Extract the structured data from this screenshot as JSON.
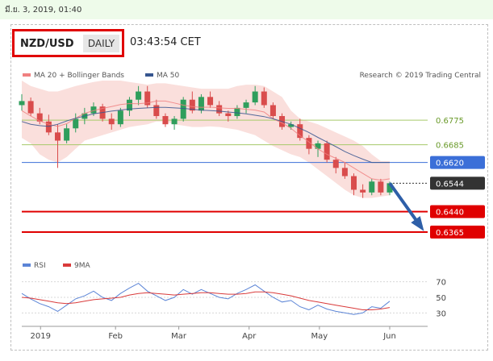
{
  "header": {
    "datetime": "มี.ย. 3, 2019, 01:40",
    "symbol": "NZD/USD",
    "timeframe": "DAILY",
    "clock": "03:43:54 CET"
  },
  "legend": {
    "bollinger": "MA 20 + Bollinger Bands",
    "ma50": "MA 50",
    "credit": "Research © 2019 Trading Central",
    "rsi": "RSI",
    "rsi_ma": "9MA"
  },
  "colors": {
    "up": "#2f9e5c",
    "down": "#d94c4c",
    "band": "#f7c9c4",
    "ma50": "#36558f",
    "green_level": "#a6c96a",
    "blue_level": "#3b6fd8",
    "red_level": "#e00000",
    "arrow": "#2e5fa8",
    "current": "#333333"
  },
  "chart_data": [
    {
      "type": "candlestick",
      "title": "",
      "xlabel": "",
      "ylabel": "",
      "ylim": [
        0.63,
        0.692
      ],
      "x_ticks": [
        "2019",
        "Feb",
        "Mar",
        "Apr",
        "May",
        "Jun"
      ],
      "x_tick_days": [
        8,
        40,
        67,
        97,
        127,
        157
      ],
      "bollinger_opacity": 0.6,
      "series": [
        {
          "name": "MA 20 + Bollinger Bands",
          "color": "#f08080",
          "values": [
            0.681,
            0.679,
            0.6772,
            0.676,
            0.6752,
            0.6762,
            0.6782,
            0.68,
            0.681,
            0.6818,
            0.6825,
            0.6832,
            0.6836,
            0.6835,
            0.6838,
            0.6845,
            0.6845,
            0.6838,
            0.683,
            0.6825,
            0.6822,
            0.6823,
            0.682,
            0.6818,
            0.6818,
            0.6815,
            0.6812,
            0.6805,
            0.678,
            0.6765,
            0.6745,
            0.6718,
            0.6695,
            0.667,
            0.665,
            0.6635,
            0.662,
            0.66,
            0.658,
            0.656,
            0.6555,
            0.656
          ]
        },
        {
          "name": "MA 50",
          "color": "#36558f",
          "values": [
            0.677,
            0.676,
            0.6755,
            0.6752,
            0.676,
            0.6772,
            0.6782,
            0.679,
            0.6798,
            0.6803,
            0.6808,
            0.6812,
            0.6816,
            0.6818,
            0.682,
            0.6822,
            0.6822,
            0.682,
            0.6818,
            0.6815,
            0.6812,
            0.681,
            0.6808,
            0.6805,
            0.6802,
            0.6798,
            0.6793,
            0.6788,
            0.678,
            0.677,
            0.676,
            0.6745,
            0.673,
            0.6712,
            0.6695,
            0.6678,
            0.666,
            0.6645,
            0.6632,
            0.662,
            0.662,
            0.662
          ]
        }
      ],
      "bands_upper": [
        0.692,
        0.69,
        0.689,
        0.688,
        0.688,
        0.689,
        0.69,
        0.6908,
        0.6915,
        0.692,
        0.692,
        0.692,
        0.6915,
        0.691,
        0.6905,
        0.691,
        0.691,
        0.6905,
        0.69,
        0.6895,
        0.689,
        0.689,
        0.689,
        0.689,
        0.69,
        0.6905,
        0.6905,
        0.69,
        0.688,
        0.686,
        0.681,
        0.678,
        0.677,
        0.676,
        0.6745,
        0.673,
        0.6715,
        0.67,
        0.668,
        0.665,
        0.6625,
        0.6625
      ],
      "bands_lower": [
        0.671,
        0.669,
        0.665,
        0.663,
        0.662,
        0.664,
        0.667,
        0.67,
        0.671,
        0.672,
        0.673,
        0.674,
        0.675,
        0.6755,
        0.676,
        0.677,
        0.677,
        0.676,
        0.6755,
        0.675,
        0.675,
        0.6752,
        0.675,
        0.6745,
        0.674,
        0.673,
        0.672,
        0.67,
        0.668,
        0.6665,
        0.665,
        0.664,
        0.662,
        0.6595,
        0.657,
        0.6545,
        0.652,
        0.65,
        0.649,
        0.649,
        0.6495,
        0.65
      ],
      "candles": [
        [
          0.683,
          0.687,
          0.681,
          0.6845
        ],
        [
          0.6845,
          0.6858,
          0.679,
          0.68
        ],
        [
          0.68,
          0.682,
          0.676,
          0.677
        ],
        [
          0.677,
          0.6795,
          0.672,
          0.673
        ],
        [
          0.673,
          0.676,
          0.66,
          0.67
        ],
        [
          0.67,
          0.676,
          0.669,
          0.6745
        ],
        [
          0.6745,
          0.68,
          0.673,
          0.678
        ],
        [
          0.678,
          0.682,
          0.676,
          0.68
        ],
        [
          0.68,
          0.684,
          0.679,
          0.6825
        ],
        [
          0.6825,
          0.6835,
          0.677,
          0.678
        ],
        [
          0.678,
          0.68,
          0.674,
          0.676
        ],
        [
          0.676,
          0.682,
          0.675,
          0.681
        ],
        [
          0.681,
          0.686,
          0.679,
          0.685
        ],
        [
          0.685,
          0.69,
          0.683,
          0.688
        ],
        [
          0.688,
          0.69,
          0.682,
          0.683
        ],
        [
          0.683,
          0.685,
          0.678,
          0.679
        ],
        [
          0.679,
          0.68,
          0.675,
          0.676
        ],
        [
          0.676,
          0.679,
          0.674,
          0.678
        ],
        [
          0.678,
          0.686,
          0.677,
          0.685
        ],
        [
          0.685,
          0.688,
          0.68,
          0.681
        ],
        [
          0.681,
          0.687,
          0.68,
          0.686
        ],
        [
          0.686,
          0.688,
          0.682,
          0.683
        ],
        [
          0.683,
          0.6845,
          0.679,
          0.68
        ],
        [
          0.68,
          0.681,
          0.677,
          0.679
        ],
        [
          0.679,
          0.683,
          0.678,
          0.682
        ],
        [
          0.682,
          0.685,
          0.68,
          0.684
        ],
        [
          0.684,
          0.69,
          0.683,
          0.688
        ],
        [
          0.688,
          0.6895,
          0.682,
          0.683
        ],
        [
          0.683,
          0.684,
          0.678,
          0.679
        ],
        [
          0.679,
          0.68,
          0.674,
          0.675
        ],
        [
          0.675,
          0.677,
          0.674,
          0.676
        ],
        [
          0.676,
          0.678,
          0.67,
          0.671
        ],
        [
          0.671,
          0.672,
          0.665,
          0.667
        ],
        [
          0.667,
          0.67,
          0.664,
          0.669
        ],
        [
          0.669,
          0.67,
          0.662,
          0.663
        ],
        [
          0.663,
          0.664,
          0.658,
          0.66
        ],
        [
          0.66,
          0.662,
          0.656,
          0.657
        ],
        [
          0.657,
          0.658,
          0.65,
          0.652
        ],
        [
          0.652,
          0.654,
          0.649,
          0.651
        ],
        [
          0.651,
          0.656,
          0.65,
          0.655
        ],
        [
          0.655,
          0.656,
          0.65,
          0.651
        ],
        [
          0.651,
          0.655,
          0.65,
          0.6544
        ]
      ],
      "levels": [
        {
          "value": 0.6775,
          "label": "0.6775",
          "kind": "green"
        },
        {
          "value": 0.6685,
          "label": "0.6685",
          "kind": "green"
        },
        {
          "value": 0.662,
          "label": "0.6620",
          "kind": "blue"
        },
        {
          "value": 0.6544,
          "label": "0.6544",
          "kind": "current"
        },
        {
          "value": 0.644,
          "label": "0.6440",
          "kind": "red"
        },
        {
          "value": 0.6365,
          "label": "0.6365",
          "kind": "red"
        }
      ],
      "arrow": {
        "from": 0.6544,
        "to": 0.6365
      }
    },
    {
      "type": "line",
      "title": "",
      "xlabel": "",
      "ylabel": "",
      "ylim": [
        20,
        80
      ],
      "y_ticks": [
        70,
        50,
        30
      ],
      "series": [
        {
          "name": "RSI",
          "color": "#5b84d6",
          "values": [
            55,
            48,
            42,
            38,
            32,
            40,
            48,
            52,
            58,
            50,
            46,
            55,
            62,
            68,
            58,
            52,
            46,
            50,
            60,
            54,
            60,
            55,
            50,
            48,
            55,
            60,
            66,
            58,
            50,
            44,
            46,
            38,
            34,
            40,
            35,
            32,
            30,
            28,
            30,
            38,
            36,
            45
          ]
        },
        {
          "name": "9MA",
          "color": "#d93a3a",
          "values": [
            50,
            49,
            47,
            45,
            43,
            42,
            43,
            45,
            47,
            48,
            49,
            50,
            53,
            55,
            56,
            55,
            54,
            53,
            54,
            55,
            56,
            56,
            55,
            54,
            54,
            55,
            57,
            57,
            56,
            54,
            52,
            49,
            46,
            44,
            42,
            40,
            38,
            36,
            34,
            34,
            35,
            37
          ]
        }
      ]
    }
  ]
}
